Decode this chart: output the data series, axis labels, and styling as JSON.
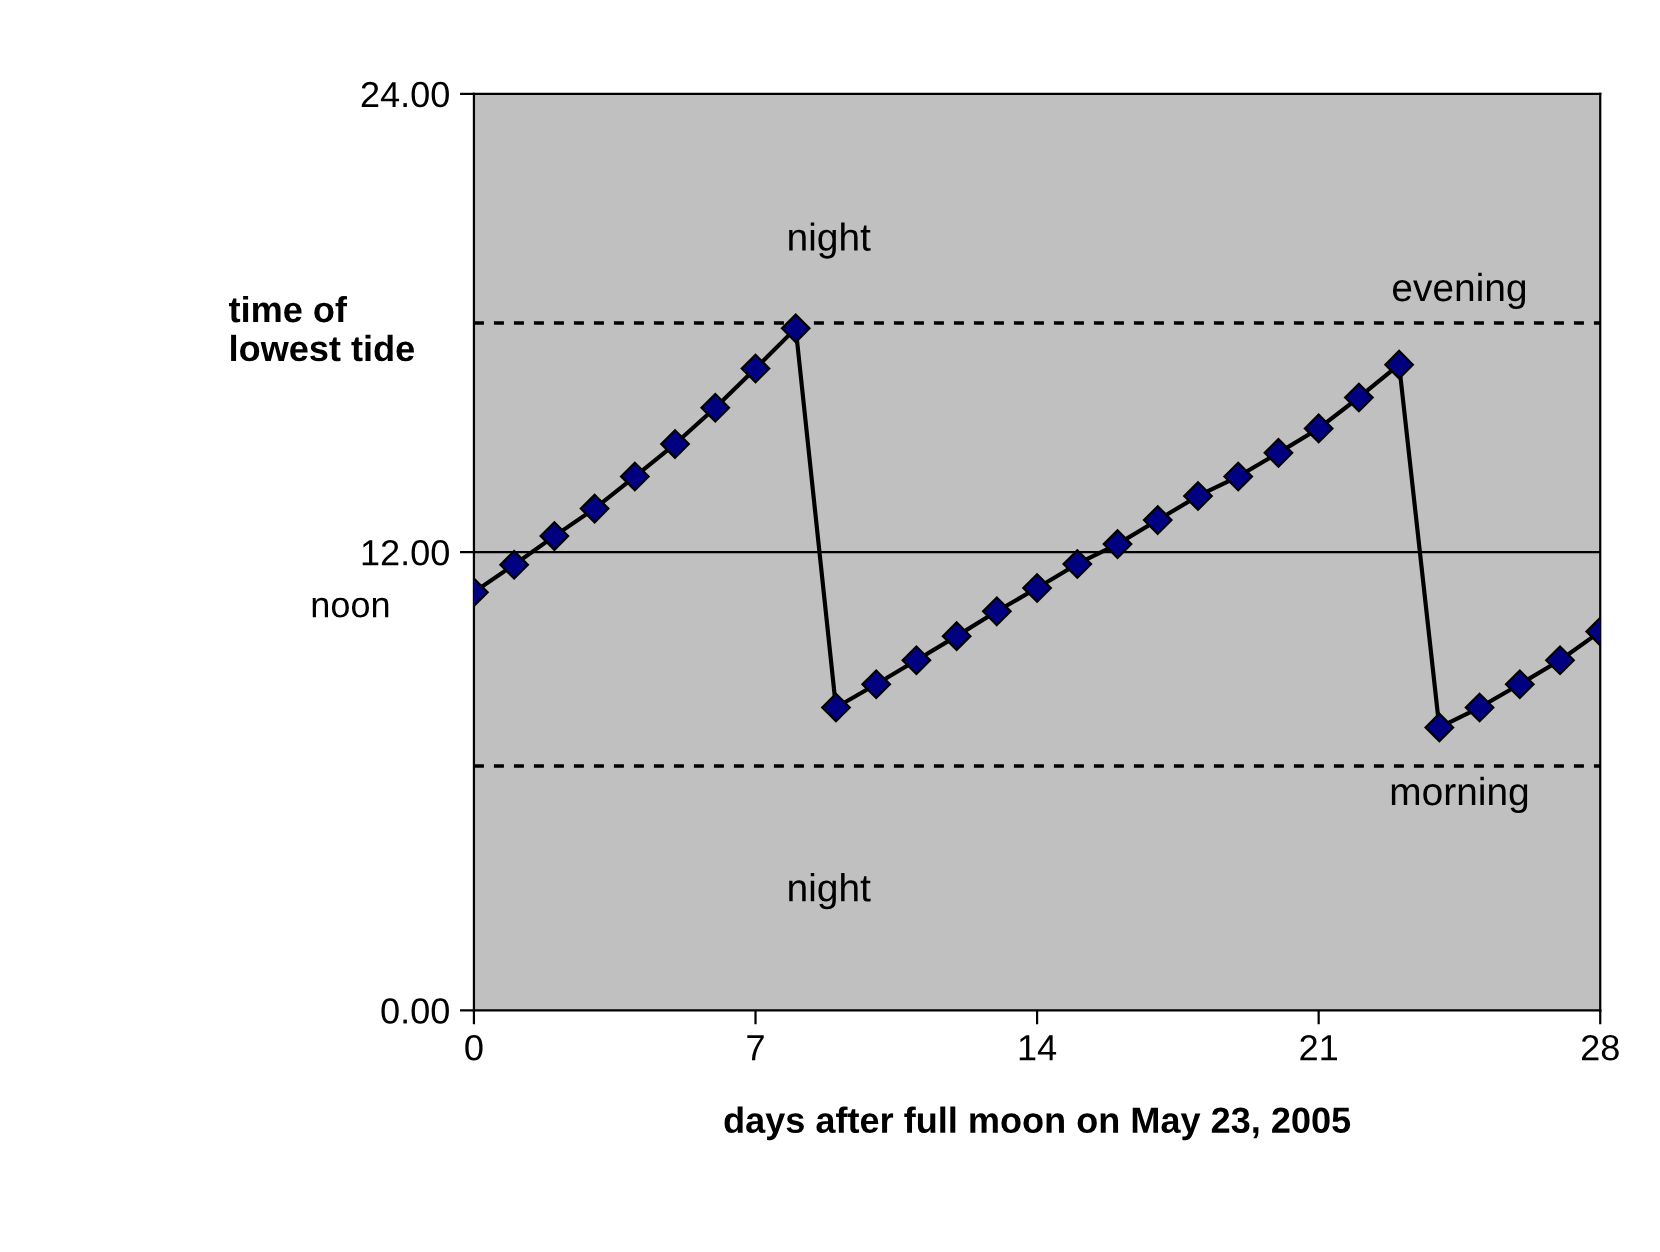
{
  "chart_data": {
    "type": "line",
    "xlabel": "days after full moon on May 23, 2005",
    "ylabel": "time of lowest tide",
    "x": [
      0,
      1,
      2,
      3,
      4,
      5,
      6,
      7,
      8,
      9,
      10,
      11,
      12,
      13,
      14,
      15,
      16,
      17,
      18,
      19,
      20,
      21,
      22,
      23,
      24,
      25,
      26,
      27,
      28
    ],
    "series": [
      {
        "color": "#000080",
        "values": [
          10.95,
          11.67,
          12.42,
          13.14,
          13.98,
          14.83,
          15.78,
          16.81,
          17.86,
          7.93,
          8.54,
          9.17,
          9.8,
          10.45,
          11.06,
          11.69,
          12.21,
          12.84,
          13.47,
          13.98,
          14.6,
          15.24,
          16.05,
          16.91,
          7.41,
          7.93,
          8.54,
          9.17,
          9.92
        ]
      }
    ],
    "marker": "diamond",
    "line_style": "solid",
    "xlim": [
      0,
      28
    ],
    "xticks": [
      0,
      7,
      14,
      21,
      28
    ],
    "ylim": [
      0,
      24
    ],
    "yticks": [
      {
        "value": 0,
        "label": "0.00"
      },
      {
        "value": 12,
        "label": "12.00"
      },
      {
        "value": 24,
        "label": "24.00"
      }
    ],
    "grid": false,
    "legend": false,
    "ref_lines": [
      {
        "axis": "y",
        "value": 12,
        "label": "noon",
        "color": "#000000",
        "line_style": "solid"
      },
      {
        "axis": "y",
        "value": 18.0,
        "color": "#000000",
        "line_style": "dashed"
      },
      {
        "axis": "y",
        "value": 6.4,
        "color": "#000000",
        "line_style": "dashed"
      }
    ],
    "annotations": [
      "night",
      "evening",
      "morning",
      "night"
    ]
  }
}
